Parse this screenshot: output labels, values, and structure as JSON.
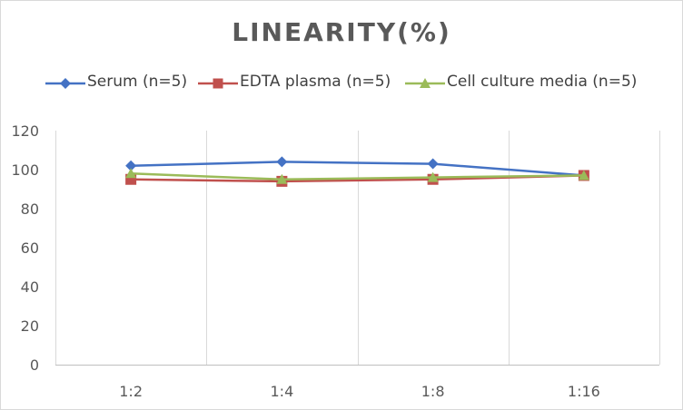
{
  "chart_data": {
    "type": "line",
    "title": "LINEARITY(%)",
    "xlabel": "",
    "ylabel": "",
    "categories": [
      "1:2",
      "1:4",
      "1:8",
      "1:16"
    ],
    "ylim": [
      0,
      120
    ],
    "yticks": [
      "0",
      "20",
      "40",
      "60",
      "80",
      "100",
      "120"
    ],
    "grid": "vertical",
    "legend_position": "top",
    "series": [
      {
        "name": "Serum (n=5)",
        "values": [
          102,
          104,
          103,
          97
        ],
        "color": "#4472c4",
        "marker": "diamond"
      },
      {
        "name": "EDTA plasma (n=5)",
        "values": [
          95,
          94,
          95,
          97
        ],
        "color": "#c0504d",
        "marker": "square"
      },
      {
        "name": "Cell culture media (n=5)",
        "values": [
          98,
          95,
          96,
          97
        ],
        "color": "#9bbb59",
        "marker": "triangle"
      }
    ]
  }
}
